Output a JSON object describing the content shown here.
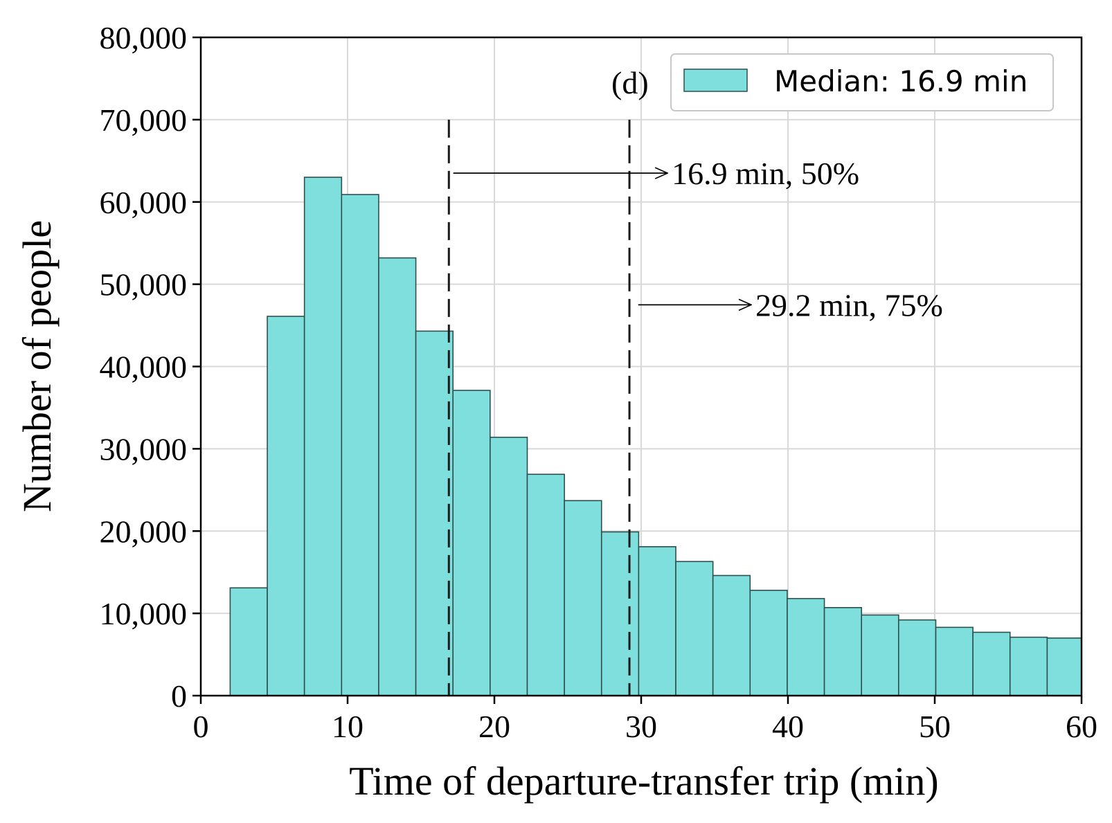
{
  "chart_data": {
    "type": "bar",
    "panel_label": "(d)",
    "xlabel": "Time of departure-transfer trip (min)",
    "ylabel": "Number of people",
    "xlim": [
      0,
      60
    ],
    "ylim": [
      0,
      80000
    ],
    "x_ticks": [
      0,
      10,
      20,
      30,
      40,
      50,
      60
    ],
    "y_ticks": [
      0,
      10000,
      20000,
      30000,
      40000,
      50000,
      60000,
      70000,
      80000
    ],
    "x_tick_labels": [
      "0",
      "10",
      "20",
      "30",
      "40",
      "50",
      "60"
    ],
    "y_tick_labels": [
      "0",
      "10,000",
      "20,000",
      "30,000",
      "40,000",
      "50,000",
      "60,000",
      "70,000",
      "80,000"
    ],
    "grid": true,
    "legend_position": "top-right",
    "series": [
      {
        "name": "Median: 16.9 min",
        "color": "#7fdfdc",
        "edge_color": "#2f4f4f",
        "bin_edges": [
          2.0,
          4.53,
          7.06,
          9.59,
          12.12,
          14.65,
          17.18,
          19.71,
          22.24,
          24.77,
          27.3,
          29.83,
          32.36,
          34.89,
          37.42,
          39.95,
          42.48,
          45.01,
          47.54,
          50.07,
          52.6,
          55.13,
          57.66,
          60.0
        ],
        "values": [
          13100,
          46100,
          63000,
          60900,
          53200,
          44300,
          37100,
          31400,
          26900,
          23700,
          19900,
          18100,
          16300,
          14600,
          12800,
          11800,
          10700,
          9800,
          9200,
          8300,
          7700,
          7100,
          7000
        ]
      }
    ],
    "reference_lines": [
      {
        "x": 16.9,
        "style": "dashed"
      },
      {
        "x": 29.2,
        "style": "dashed"
      }
    ],
    "annotations": [
      {
        "text": "16.9 min, 50%",
        "y": 63500,
        "arrow_from_x": 17.2,
        "arrow_to_x": 31.8
      },
      {
        "text": "29.2 min, 75%",
        "y": 47500,
        "arrow_from_x": 29.8,
        "arrow_to_x": 37.5
      }
    ]
  }
}
